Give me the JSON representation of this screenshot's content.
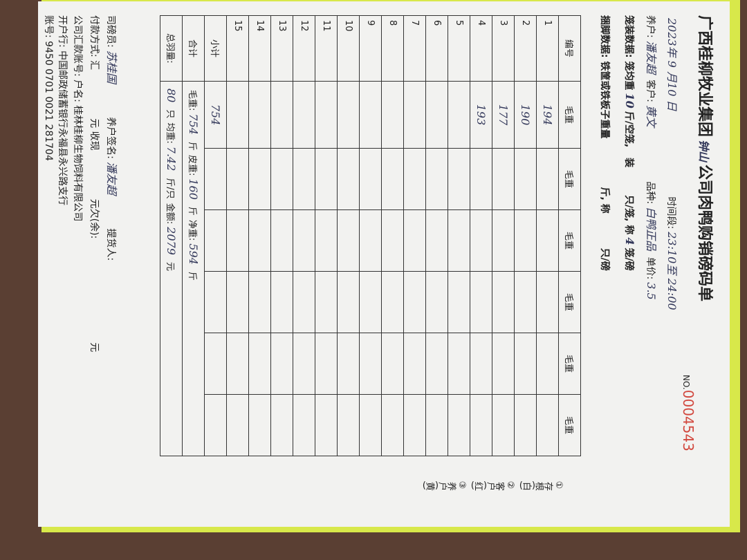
{
  "header": {
    "title_prefix": "广西桂柳牧业集团",
    "branch": "钟山",
    "title_suffix": "公司肉鸭购销磅码单",
    "serial_label": "NO.",
    "serial": "0004543"
  },
  "info": {
    "date": "2023年 9 月10 日",
    "time_label": "时间段:",
    "time": "23:10至 24:00",
    "farmer_label": "养户:",
    "farmer": "潘友超",
    "customer_label": "客户:",
    "customer": "黄文",
    "variety_label": "品种:",
    "variety": "白鸭正品",
    "price_label": "单价:",
    "price": "3.5"
  },
  "cage": {
    "label": "笼装数据:",
    "avg_label": "笼均重",
    "avg": "10",
    "avg_unit": "斤/空笼,",
    "pack_label": "装",
    "pack_unit": "只/笼,",
    "weigh_label": "称",
    "weigh": "4",
    "weigh_unit": "笼/磅"
  },
  "tie": {
    "label": "捆脚数据:",
    "text": "铁筐或铁板子重量",
    "unit": "斤,",
    "weigh_label": "称",
    "weigh_unit": "只/磅"
  },
  "table": {
    "headers": [
      "编号",
      "毛重",
      "毛重",
      "毛重",
      "毛重",
      "毛重",
      "毛重"
    ],
    "rows": [
      {
        "no": "1",
        "gross": "194"
      },
      {
        "no": "2",
        "gross": "190"
      },
      {
        "no": "3",
        "gross": "177"
      },
      {
        "no": "4",
        "gross": "193"
      },
      {
        "no": "5"
      },
      {
        "no": "6"
      },
      {
        "no": "7"
      },
      {
        "no": "8"
      },
      {
        "no": "9"
      },
      {
        "no": "10"
      },
      {
        "no": "11"
      },
      {
        "no": "12"
      },
      {
        "no": "13"
      },
      {
        "no": "14"
      },
      {
        "no": "15"
      }
    ],
    "subtotal_label": "小计",
    "subtotal": "754"
  },
  "totals": {
    "label": "合计",
    "gross_label": "毛重:",
    "gross": "754",
    "gross_unit": "斤",
    "tare_label": "皮重:",
    "tare": "160",
    "tare_unit": "斤",
    "net_label": "净重:",
    "net": "594",
    "net_unit": "斤"
  },
  "count": {
    "label": "总羽量:",
    "count": "80",
    "count_unit": "只",
    "avg_label": "均重:",
    "avg": "7.42",
    "avg_unit": "斤/只",
    "amount_label": "金额:",
    "amount": "2079",
    "amount_unit": "元"
  },
  "footer": {
    "weigher_label": "司磅员:",
    "weigher": "苏桂国",
    "farmer_sign_label": "养户签名:",
    "farmer_sign": "潘友超",
    "pickup_label": "提货人:",
    "pay_label": "付款方式: 汇",
    "pay_unit": "元",
    "cash_label": "收现",
    "cash_unit": "元欠(余):",
    "owe_unit": "元",
    "account_label": "公司汇款账号: 户名:",
    "account_name": "桂林桂柳生物饲料有限公司",
    "bank_label": "开户行:",
    "bank": "中国邮政储蓄银行永福县永兴路支行",
    "acct_no_label": "账号:",
    "acct_no": "9450 0701 0021 281704"
  },
  "copies": [
    "①存根(白)",
    "②客户(红)",
    "③养户(黄)"
  ]
}
